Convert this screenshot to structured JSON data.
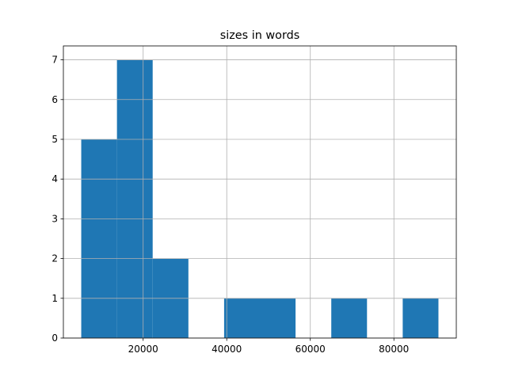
{
  "chart_data": {
    "type": "histogram",
    "title": "sizes in words",
    "bins": [
      5185,
      13732,
      22279,
      30826,
      39373,
      47920,
      56467,
      65014,
      73561,
      82108,
      90655
    ],
    "values": [
      5,
      7,
      2,
      0,
      1,
      1,
      0,
      1,
      0,
      1
    ],
    "color": "#1f77b4",
    "xlim": [
      911,
      94929
    ],
    "xticks": [
      20000,
      40000,
      60000,
      80000
    ],
    "ylim": [
      0,
      7.35
    ],
    "yticks": [
      0,
      1,
      2,
      3,
      4,
      5,
      6,
      7
    ],
    "grid": true
  }
}
